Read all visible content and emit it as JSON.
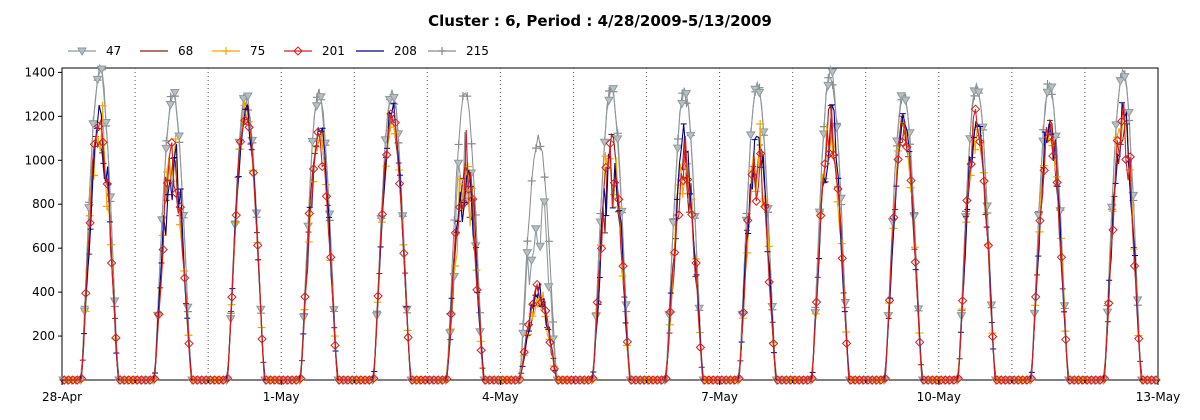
{
  "chart_data": {
    "type": "line",
    "title": "Cluster : 6, Period : 4/28/2009-5/13/2009",
    "xlabel": "",
    "ylabel": "",
    "x_range": [
      "2009-04-28",
      "2009-05-13"
    ],
    "ylim": [
      0,
      1420
    ],
    "x_tick_labels": [
      "28-Apr",
      "1-May",
      "4-May",
      "7-May",
      "10-May",
      "13-May"
    ],
    "y_tick_labels": [
      "200",
      "400",
      "600",
      "800",
      "1000",
      "1200",
      "1400"
    ],
    "y_ticks": [
      200,
      400,
      600,
      800,
      1000,
      1200,
      1400
    ],
    "grid": "dotted vertical lines at midnight of each day",
    "legend_position": "top-left",
    "daily_peaks_approx": {
      "days": [
        "4/28",
        "4/29",
        "4/30",
        "5/1",
        "5/2",
        "5/3",
        "5/4",
        "5/5",
        "5/6",
        "5/7",
        "5/8",
        "5/9",
        "5/10",
        "5/11",
        "5/12"
      ],
      "clear_sky_215": [
        1420,
        1310,
        1290,
        1300,
        1310,
        1310,
        1100,
        1330,
        1320,
        1330,
        1400,
        1320,
        1350,
        1350,
        1420
      ],
      "observed_mean": [
        1200,
        1050,
        1270,
        1150,
        1250,
        1000,
        430,
        1050,
        1050,
        1050,
        1200,
        1200,
        1220,
        1200,
        1230
      ]
    },
    "series": [
      {
        "name": "47",
        "color": "#8e9a9e",
        "marker": "triangle-down"
      },
      {
        "name": "68",
        "color": "#8b1a1a",
        "marker": "line"
      },
      {
        "name": "75",
        "color": "#f2a900",
        "marker": "plus"
      },
      {
        "name": "201",
        "color": "#d42020",
        "marker": "diamond"
      },
      {
        "name": "208",
        "color": "#00008b",
        "marker": "line"
      },
      {
        "name": "215",
        "color": "#8a8a8a",
        "marker": "plus"
      }
    ]
  }
}
